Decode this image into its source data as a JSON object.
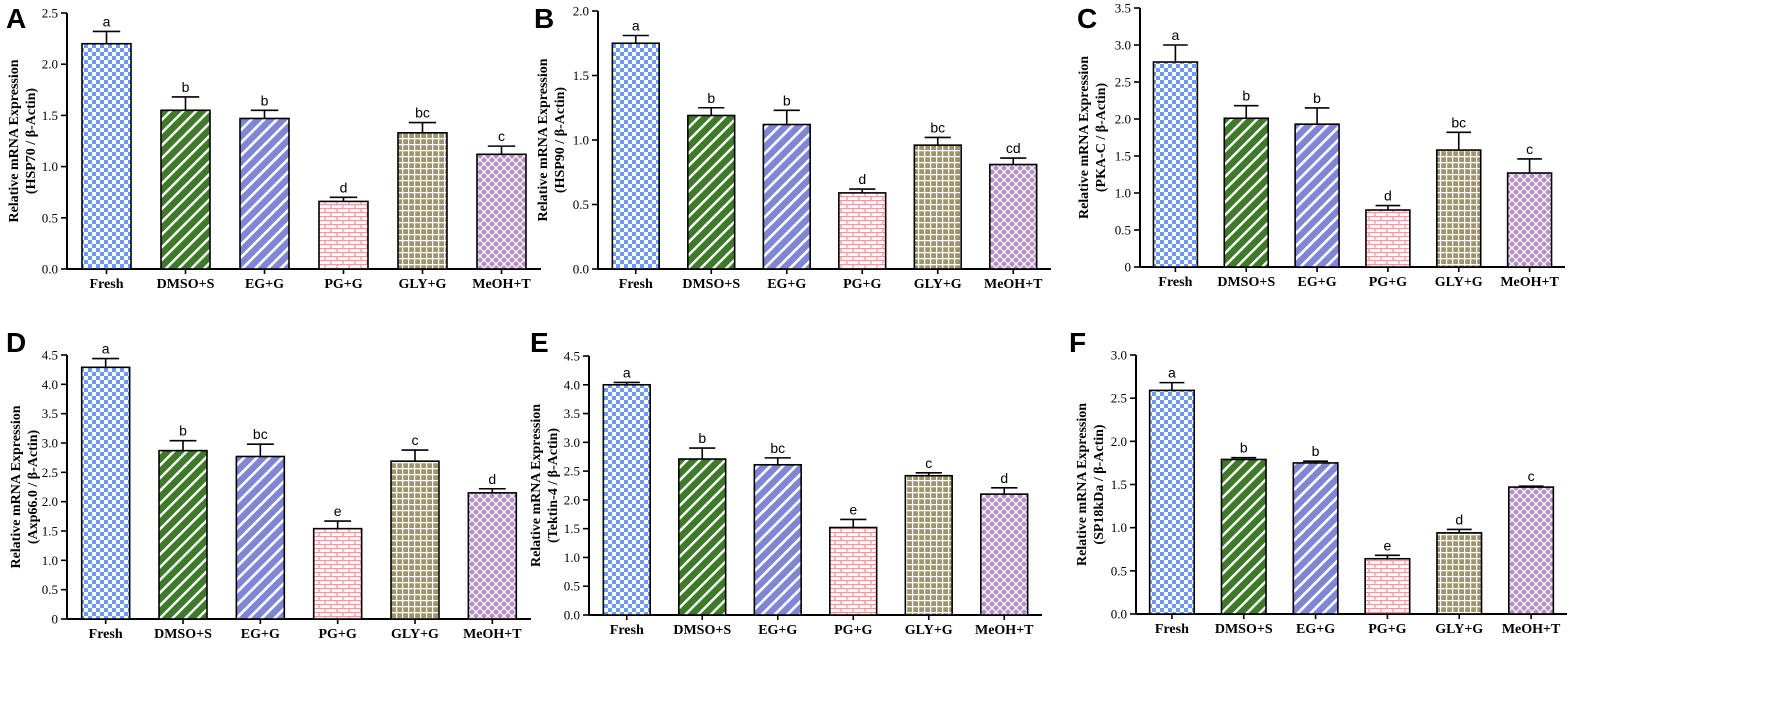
{
  "chart_data": [
    {
      "type": "bar",
      "panel": "A",
      "ylabel": [
        "Relative mRNA Expression",
        "(HSP70 / β-Actin)"
      ],
      "categories": [
        "Fresh",
        "DMSO+S",
        "EG+G",
        "PG+G",
        "GLY+G",
        "MeOH+T"
      ],
      "values": [
        2.2,
        1.55,
        1.47,
        0.66,
        1.33,
        1.12
      ],
      "errors": [
        0.12,
        0.13,
        0.08,
        0.04,
        0.1,
        0.08
      ],
      "significance": [
        "a",
        "b",
        "b",
        "d",
        "bc",
        "c"
      ],
      "ylim": [
        0,
        2.5
      ],
      "yticks": [
        "0.0",
        "0.5",
        "1.0",
        "1.5",
        "2.0",
        "2.5"
      ]
    },
    {
      "type": "bar",
      "panel": "B",
      "ylabel": [
        "Relative mRNA Expression",
        "(HSP90 / β-Actin)"
      ],
      "categories": [
        "Fresh",
        "DMSO+S",
        "EG+G",
        "PG+G",
        "GLY+G",
        "MeOH+T"
      ],
      "values": [
        1.75,
        1.19,
        1.12,
        0.59,
        0.96,
        0.81
      ],
      "errors": [
        0.06,
        0.06,
        0.11,
        0.03,
        0.06,
        0.05
      ],
      "significance": [
        "a",
        "b",
        "b",
        "d",
        "bc",
        "cd"
      ],
      "ylim": [
        0,
        2.0
      ],
      "yticks": [
        "0.0",
        "0.5",
        "1.0",
        "1.5",
        "2.0"
      ]
    },
    {
      "type": "bar",
      "panel": "C",
      "ylabel": [
        "Relative mRNA Expression",
        "(PKA-C / β-Actin)"
      ],
      "categories": [
        "Fresh",
        "DMSO+S",
        "EG+G",
        "PG+G",
        "GLY+G",
        "MeOH+T"
      ],
      "values": [
        2.77,
        2.01,
        1.93,
        0.77,
        1.58,
        1.27
      ],
      "errors": [
        0.23,
        0.17,
        0.22,
        0.06,
        0.24,
        0.19
      ],
      "significance": [
        "a",
        "b",
        "b",
        "d",
        "bc",
        "c"
      ],
      "ylim": [
        0,
        3.5
      ],
      "yticks": [
        "0",
        "0.5",
        "1.0",
        "1.5",
        "2.0",
        "2.5",
        "3.0",
        "3.5"
      ]
    },
    {
      "type": "bar",
      "panel": "D",
      "ylabel": [
        "Relative mRNA Expression",
        "(Axp66.0 / β-Actin)"
      ],
      "categories": [
        "Fresh",
        "DMSO+S",
        "EG+G",
        "PG+G",
        "GLY+G",
        "MeOH+T"
      ],
      "values": [
        4.29,
        2.87,
        2.77,
        1.54,
        2.69,
        2.15
      ],
      "errors": [
        0.15,
        0.17,
        0.21,
        0.13,
        0.19,
        0.07
      ],
      "significance": [
        "a",
        "b",
        "bc",
        "e",
        "c",
        "d"
      ],
      "ylim": [
        0,
        4.5
      ],
      "yticks": [
        "0",
        "0.5",
        "1.0",
        "1.5",
        "2.0",
        "2.5",
        "3.0",
        "3.5",
        "4.0",
        "4.5"
      ]
    },
    {
      "type": "bar",
      "panel": "E",
      "ylabel": [
        "Relative mRNA Expression",
        "(Tektin-4 / β-Actin)"
      ],
      "categories": [
        "Fresh",
        "DMSO+S",
        "EG+G",
        "PG+G",
        "GLY+G",
        "MeOH+T"
      ],
      "values": [
        4.0,
        2.71,
        2.61,
        1.52,
        2.42,
        2.1
      ],
      "errors": [
        0.04,
        0.19,
        0.12,
        0.14,
        0.05,
        0.11
      ],
      "significance": [
        "a",
        "b",
        "bc",
        "e",
        "c",
        "d"
      ],
      "ylim": [
        0,
        4.5
      ],
      "yticks": [
        "0.0",
        "0.5",
        "1.0",
        "1.5",
        "2.0",
        "2.5",
        "3.0",
        "3.5",
        "4.0",
        "4.5"
      ]
    },
    {
      "type": "bar",
      "panel": "F",
      "ylabel": [
        "Relative mRNA Expression",
        "(SP18kDa / β-Actin)"
      ],
      "categories": [
        "Fresh",
        "DMSO+S",
        "EG+G",
        "PG+G",
        "GLY+G",
        "MeOH+T"
      ],
      "values": [
        2.59,
        1.79,
        1.75,
        0.64,
        0.94,
        1.47
      ],
      "errors": [
        0.09,
        0.02,
        0.02,
        0.04,
        0.04,
        0.01
      ],
      "significance": [
        "a",
        "b",
        "b",
        "e",
        "d",
        "c"
      ],
      "ylim": [
        0,
        3.0
      ],
      "yticks": [
        "0.0",
        "0.5",
        "1.0",
        "1.5",
        "2.0",
        "2.5",
        "3.0"
      ]
    }
  ],
  "styles": {
    "bar_colors": [
      "#6b9af0",
      "#3f7a2a",
      "#7f86d6",
      "#ef9a9a",
      "#a0956a",
      "#b68cc4"
    ],
    "bar_patterns": [
      "checker",
      "diag-forward",
      "diag-forward",
      "brick",
      "grid",
      "diamond"
    ]
  }
}
